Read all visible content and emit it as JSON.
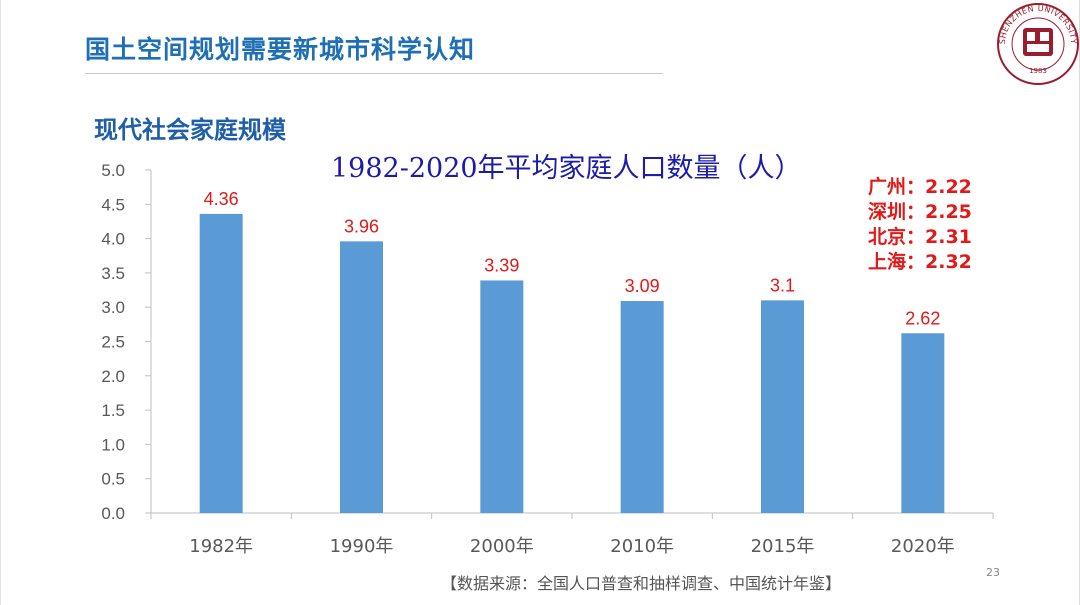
{
  "slide": {
    "title": "国土空间规划需要新城市科学认知",
    "subtitle": "现代社会家庭规模",
    "page_number": "23",
    "source": "【数据来源：全国人口普查和抽样调查、中国统计年鉴】"
  },
  "callout": {
    "cities": [
      {
        "label": "广州：2.22"
      },
      {
        "label": "深圳：2.25"
      },
      {
        "label": "北京：2.31"
      },
      {
        "label": "上海：2.32"
      }
    ]
  },
  "logo": {
    "ring_text": "SHENZHEN UNIVERSITY",
    "year": "1983"
  },
  "colors": {
    "bar": "#5b9bd5",
    "title_blue": "#1f6fb5",
    "chart_title": "#1c1ca8",
    "data_label": "#e11919",
    "logo": "#9b1c2e"
  },
  "chart_data": {
    "type": "bar",
    "title": "1982-2020年平均家庭人口数量（人）",
    "categories": [
      "1982年",
      "1990年",
      "2000年",
      "2010年",
      "2015年",
      "2020年"
    ],
    "values": [
      4.36,
      3.96,
      3.39,
      3.09,
      3.1,
      2.62
    ],
    "data_labels": [
      "4.36",
      "3.96",
      "3.39",
      "3.09",
      "3.1",
      "2.62"
    ],
    "ylim": [
      0,
      5
    ],
    "yticks": [
      "0.0",
      "0.5",
      "1.0",
      "1.5",
      "2.0",
      "2.5",
      "3.0",
      "3.5",
      "4.0",
      "4.5",
      "5.0"
    ],
    "grid": false,
    "legend": "none"
  }
}
